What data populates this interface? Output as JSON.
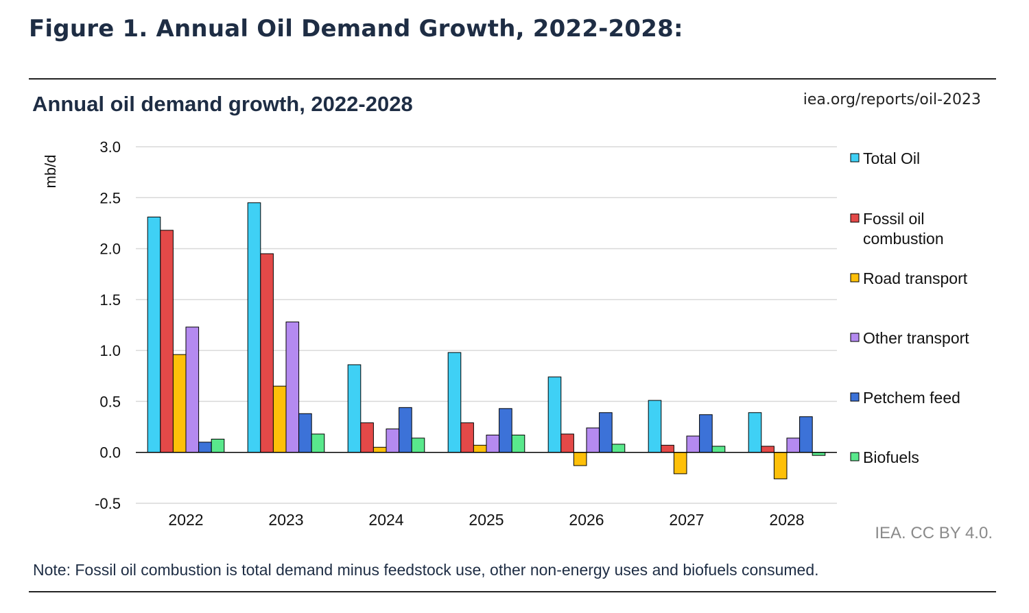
{
  "figure_title": "Figure 1. Annual Oil Demand Growth, 2022-2028:",
  "source": "iea.org/reports/oil-2023",
  "credit": "IEA. CC BY 4.0.",
  "note": "Note: Fossil oil combustion is total demand minus feedstock use, other non-energy uses and biofuels consumed.",
  "chart_data": {
    "type": "bar",
    "title": "Annual oil demand growth, 2022-2028",
    "xlabel": "",
    "ylabel": "mb/d",
    "ylim": [
      -0.5,
      3.0
    ],
    "yticks": [
      "3.0",
      "2.5",
      "2.0",
      "1.5",
      "1.0",
      "0.5",
      "0.0",
      "-0.5"
    ],
    "grid": true,
    "legend_position": "right",
    "categories": [
      "2022",
      "2023",
      "2024",
      "2025",
      "2026",
      "2027",
      "2028"
    ],
    "series": [
      {
        "name": "Total Oil",
        "color": "#3fd0f5",
        "values": [
          2.31,
          2.45,
          0.86,
          0.98,
          0.74,
          0.51,
          0.39
        ]
      },
      {
        "name": "Fossil oil combustion",
        "legend_lines": [
          "Fossil oil",
          "combustion"
        ],
        "color": "#e34948",
        "values": [
          2.18,
          1.95,
          0.29,
          0.29,
          0.18,
          0.07,
          0.06
        ]
      },
      {
        "name": "Road transport",
        "color": "#fec009",
        "values": [
          0.96,
          0.65,
          0.05,
          0.07,
          -0.13,
          -0.21,
          -0.26
        ]
      },
      {
        "name": "Other transport",
        "color": "#b48af0",
        "values": [
          1.23,
          1.28,
          0.23,
          0.17,
          0.24,
          0.16,
          0.14
        ]
      },
      {
        "name": "Petchem feed",
        "color": "#3c72d8",
        "values": [
          0.1,
          0.38,
          0.44,
          0.43,
          0.39,
          0.37,
          0.35
        ]
      },
      {
        "name": "Biofuels",
        "color": "#59e88c",
        "values": [
          0.13,
          0.18,
          0.14,
          0.17,
          0.08,
          0.06,
          -0.03
        ]
      }
    ]
  }
}
